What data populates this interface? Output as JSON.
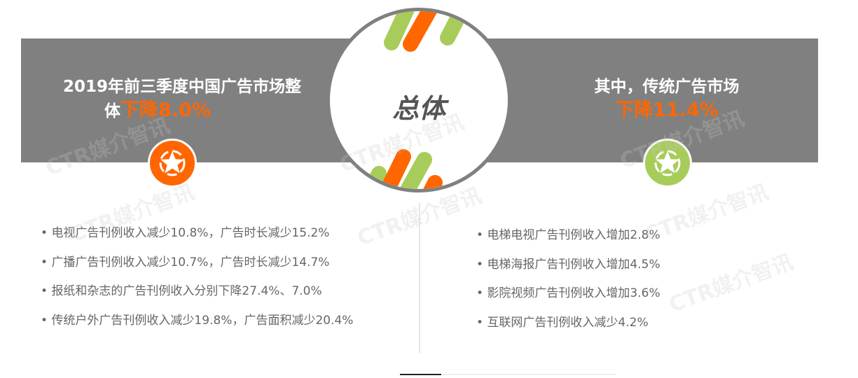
{
  "watermark": "CTR媒介智讯",
  "colors": {
    "band": "#808080",
    "accent_orange": "#ff6600",
    "accent_green": "#a8cc5a",
    "text": "#666666"
  },
  "center": {
    "title": "总体"
  },
  "left": {
    "title_line1": "2019年前三季度中国广告市场整",
    "title_line2_prefix": "体",
    "title_highlight": "下降8.0%",
    "badge_icon": "star-icon",
    "items": [
      "电视广告刊例收入减少10.8%，广告时长减少15.2%",
      "广播广告刊例收入减少10.7%，广告时长减少14.7%",
      "报纸和杂志的广告刊例收入分别下降27.4%、7.0%",
      "传统户外广告刊例收入减少19.8%，广告面积减少20.4%"
    ]
  },
  "right": {
    "title_line1": "其中，传统广告市场",
    "title_highlight": "下降11.4%",
    "badge_icon": "star-icon",
    "items": [
      "电梯电视广告刊例收入增加2.8%",
      "电梯海报广告刊例收入增加4.5%",
      "影院视频广告刊例收入增加3.6%",
      "互联网广告刊例收入减少4.2%"
    ]
  }
}
